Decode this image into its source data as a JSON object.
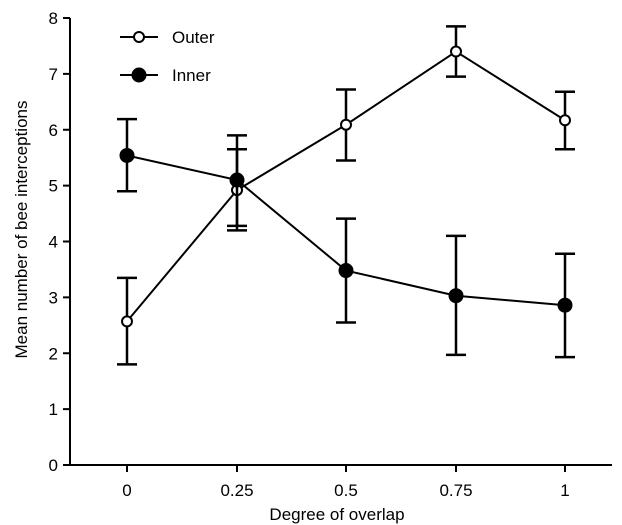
{
  "chart_data": {
    "type": "line",
    "title": "",
    "xlabel": "Degree of overlap",
    "ylabel": "Mean number of bee interceptions",
    "x": [
      0,
      0.25,
      0.5,
      0.75,
      1
    ],
    "x_tick_labels": [
      "0",
      "0.25",
      "0.5",
      "0.75",
      "1"
    ],
    "ylim": [
      0,
      8
    ],
    "y_ticks": [
      0,
      1,
      2,
      3,
      4,
      5,
      6,
      7,
      8
    ],
    "grid": false,
    "legend_position": "top-left",
    "series": [
      {
        "name": "Outer",
        "marker": "open-circle",
        "values": [
          2.57,
          4.92,
          6.09,
          7.4,
          6.17
        ],
        "err_low": [
          1.8,
          4.2,
          5.45,
          6.95,
          5.65
        ],
        "err_high": [
          3.35,
          5.65,
          6.72,
          7.85,
          6.68
        ]
      },
      {
        "name": "Inner",
        "marker": "filled-circle",
        "values": [
          5.54,
          5.1,
          3.48,
          3.03,
          2.86
        ],
        "err_low": [
          4.9,
          4.28,
          2.55,
          1.97,
          1.93
        ],
        "err_high": [
          6.19,
          5.9,
          4.41,
          4.1,
          3.78
        ]
      }
    ]
  }
}
